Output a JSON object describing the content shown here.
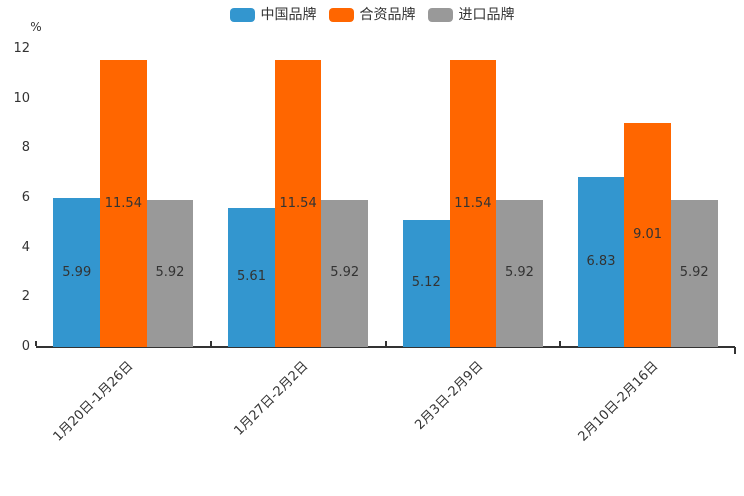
{
  "chart_data": {
    "type": "bar",
    "title": "",
    "unit": "%",
    "categories": [
      "1月20日-1月26日",
      "1月27日-2月2日",
      "2月3日-2月9日",
      "2月10日-2月16日"
    ],
    "series": [
      {
        "name": "中国品牌",
        "color": "#3396cf",
        "values": [
          5.99,
          5.61,
          5.12,
          6.83
        ]
      },
      {
        "name": "合资品牌",
        "color": "#ff6600",
        "values": [
          11.54,
          11.54,
          11.54,
          9.01
        ]
      },
      {
        "name": "进口品牌",
        "color": "#999999",
        "values": [
          5.92,
          5.92,
          5.92,
          5.92
        ]
      }
    ],
    "ylim": [
      0,
      12
    ],
    "yticks": [
      0,
      2,
      4,
      6,
      8,
      10,
      12
    ],
    "legend_position": "top",
    "grid": false,
    "value_labels": true,
    "axis_color": "#333333",
    "text_color": "#333333"
  }
}
